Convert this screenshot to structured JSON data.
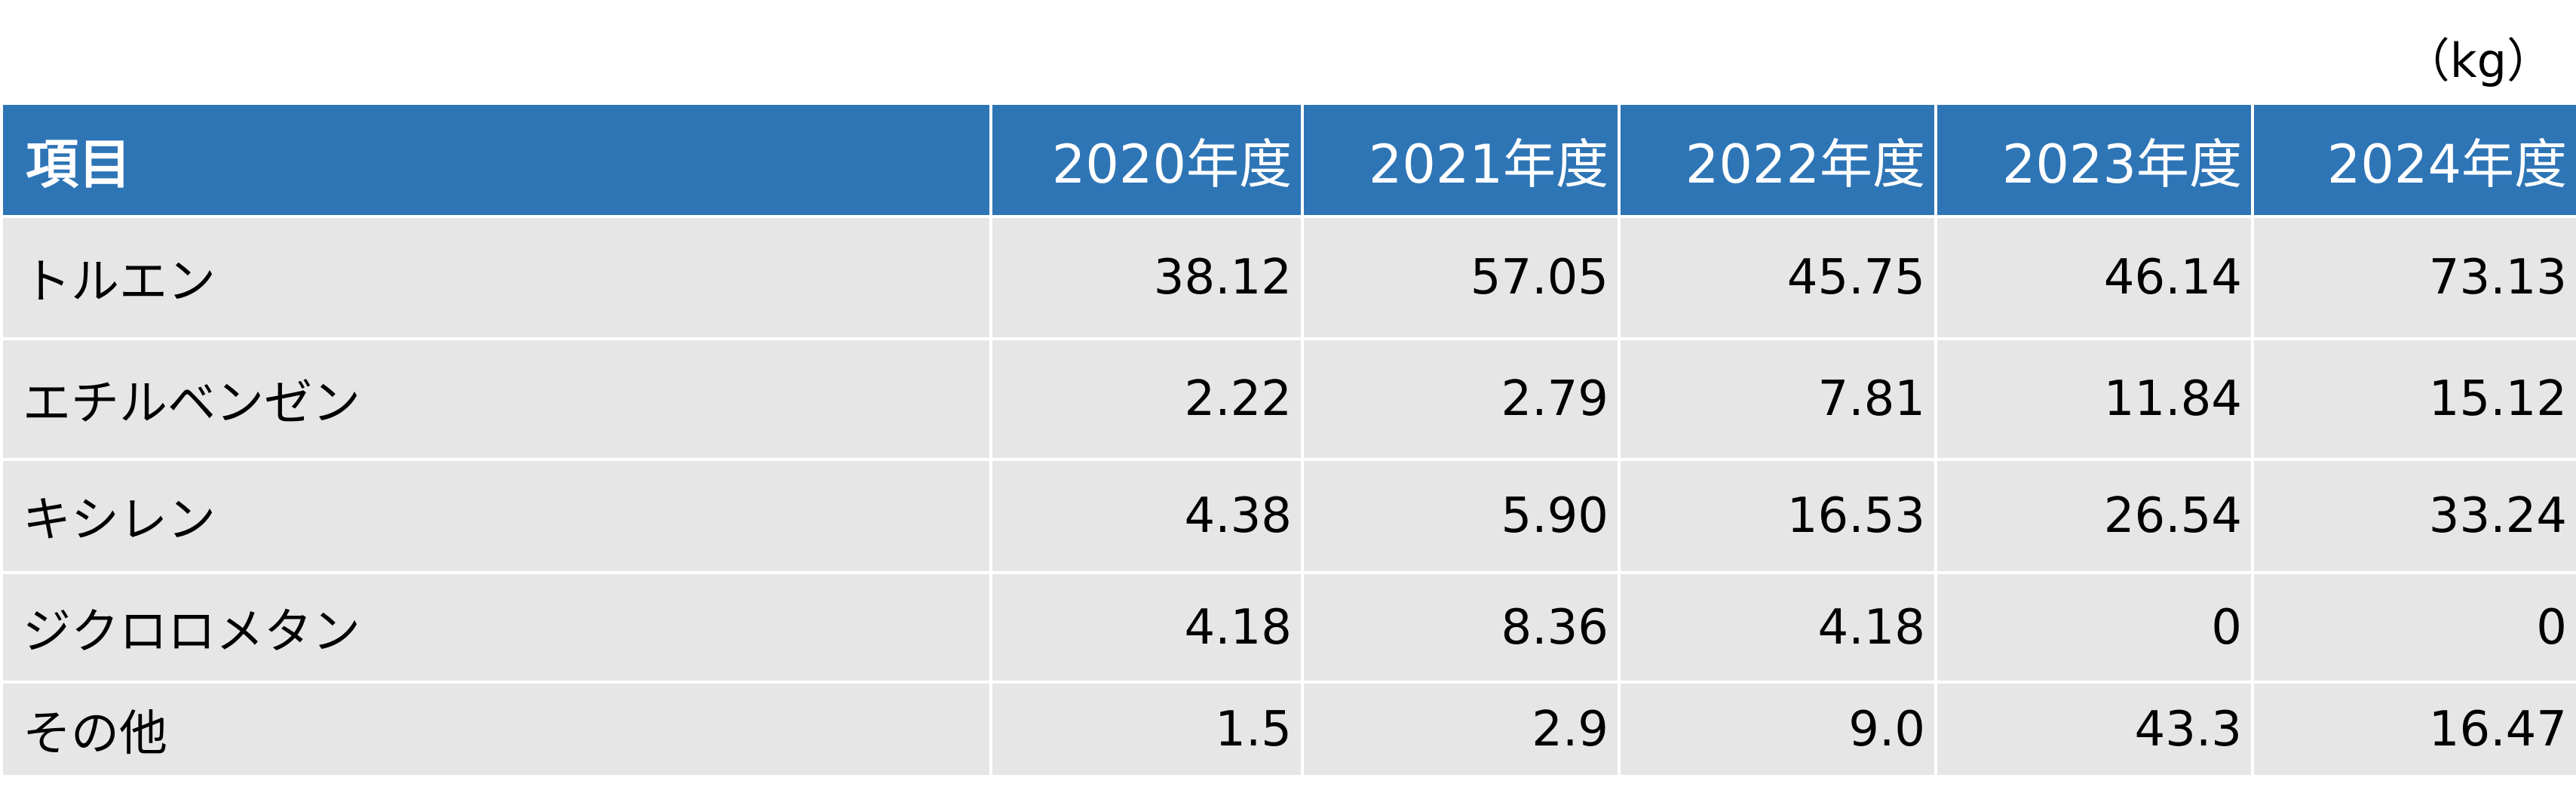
{
  "unit": "（kg）",
  "header": {
    "item": "項目",
    "years": [
      "2020年度",
      "2021年度",
      "2022年度",
      "2023年度",
      "2024年度"
    ]
  },
  "rows": [
    {
      "label": "トルエン",
      "values": [
        "38.12",
        "57.05",
        "45.75",
        "46.14",
        "73.13"
      ]
    },
    {
      "label": "エチルベンゼン",
      "values": [
        "2.22",
        "2.79",
        "7.81",
        "11.84",
        "15.12"
      ]
    },
    {
      "label": "キシレン",
      "values": [
        "4.38",
        "5.90",
        "16.53",
        "26.54",
        "33.24"
      ]
    },
    {
      "label": "ジクロロメタン",
      "values": [
        "4.18",
        "8.36",
        "4.18",
        "0",
        "0"
      ]
    },
    {
      "label": "その他",
      "values": [
        "1.5",
        "2.9",
        "9.0",
        "43.3",
        "16.47"
      ]
    }
  ],
  "colors": {
    "header_bg": "#2e75b6",
    "header_text": "#ffffff",
    "body_bg": "#e6e6e6"
  }
}
